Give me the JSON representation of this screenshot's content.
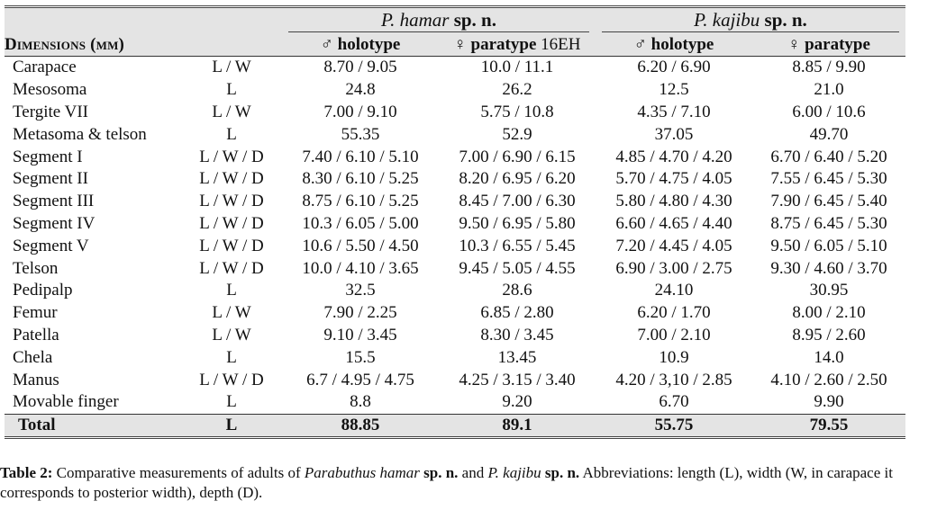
{
  "table": {
    "species": [
      {
        "genus": "P. hamar",
        "suffix": "sp. n."
      },
      {
        "genus": "P. kajibu",
        "suffix": "sp. n."
      }
    ],
    "dimension_label": "Dimensions (mm)",
    "columns": [
      {
        "symbol": "♂",
        "label": "holotype",
        "extra": ""
      },
      {
        "symbol": "♀",
        "label": "paratype",
        "extra": "16EH"
      },
      {
        "symbol": "♂",
        "label": "holotype",
        "extra": ""
      },
      {
        "symbol": "♀",
        "label": "paratype",
        "extra": ""
      }
    ],
    "rows": [
      {
        "name": "Carapace",
        "unit": "L / W",
        "v": [
          "8.70 / 9.05",
          "10.0 / 11.1",
          "6.20 / 6.90",
          "8.85 / 9.90"
        ]
      },
      {
        "name": "Mesosoma",
        "unit": "L",
        "v": [
          "24.8",
          "26.2",
          "12.5",
          "21.0"
        ]
      },
      {
        "name": "Tergite VII",
        "unit": "L / W",
        "v": [
          "7.00 / 9.10",
          "5.75 / 10.8",
          "4.35 / 7.10",
          "6.00 / 10.6"
        ]
      },
      {
        "name": "Metasoma & telson",
        "unit": "L",
        "v": [
          "55.35",
          "52.9",
          "37.05",
          "49.70"
        ]
      },
      {
        "name": "Segment I",
        "unit": "L / W / D",
        "v": [
          "7.40 / 6.10 / 5.10",
          "7.00 / 6.90 / 6.15",
          "4.85 / 4.70 / 4.20",
          "6.70 / 6.40 / 5.20"
        ]
      },
      {
        "name": "Segment II",
        "unit": "L / W / D",
        "v": [
          "8.30 / 6.10 / 5.25",
          "8.20 / 6.95 / 6.20",
          "5.70 / 4.75 / 4.05",
          "7.55 / 6.45 / 5.30"
        ]
      },
      {
        "name": "Segment III",
        "unit": "L / W / D",
        "v": [
          "8.75 / 6.10 / 5.25",
          "8.45 / 7.00 / 6.30",
          "5.80 / 4.80 / 4.30",
          "7.90 / 6.45 / 5.40"
        ]
      },
      {
        "name": "Segment IV",
        "unit": "L / W / D",
        "v": [
          "10.3 / 6.05 / 5.00",
          "9.50 / 6.95 / 5.80",
          "6.60 / 4.65 / 4.40",
          "8.75 / 6.45 / 5.30"
        ]
      },
      {
        "name": "Segment V",
        "unit": "L / W / D",
        "v": [
          "10.6 / 5.50 / 4.50",
          "10.3 / 6.55 / 5.45",
          "7.20 / 4.45 / 4.05",
          "9.50 / 6.05 / 5.10"
        ]
      },
      {
        "name": "Telson",
        "unit": "L / W / D",
        "v": [
          "10.0 / 4.10 / 3.65",
          "9.45 / 5.05 / 4.55",
          "6.90 / 3.00 / 2.75",
          "9.30 / 4.60 / 3.70"
        ]
      },
      {
        "name": "Pedipalp",
        "unit": "L",
        "v": [
          "32.5",
          "28.6",
          "24.10",
          "30.95"
        ]
      },
      {
        "name": "Femur",
        "unit": "L / W",
        "v": [
          "7.90 / 2.25",
          "6.85 / 2.80",
          "6.20 / 1.70",
          "8.00 / 2.10"
        ]
      },
      {
        "name": "Patella",
        "unit": "L / W",
        "v": [
          "9.10 / 3.45",
          "8.30 / 3.45",
          "7.00 / 2.10",
          "8.95 / 2.60"
        ]
      },
      {
        "name": "Chela",
        "unit": "L",
        "v": [
          "15.5",
          "13.45",
          "10.9",
          "14.0"
        ]
      },
      {
        "name": "Manus",
        "unit": "L / W / D",
        "v": [
          "6.7 / 4.95 / 4.75",
          "4.25 / 3.15 / 3.40",
          "4.20 / 3,10 / 2.85",
          "4.10 / 2.60 / 2.50"
        ]
      },
      {
        "name": "Movable finger",
        "unit": "L",
        "v": [
          "8.8",
          "9.20",
          "6.70",
          "9.90"
        ]
      }
    ],
    "total": {
      "name": "Total",
      "unit": "L",
      "v": [
        "88.85",
        "89.1",
        "55.75",
        "79.55"
      ]
    }
  },
  "caption": {
    "label": "Table 2:",
    "t1": " Comparative measurements of adults of ",
    "sp1": "Parabuthus hamar",
    "n1": " sp. n.",
    "t2": " and ",
    "sp2": "P. kajibu",
    "n2": " sp. n.",
    "t3": " Abbreviations: length (L), width (W, in carapace it corresponds to posterior width), depth (D)."
  }
}
